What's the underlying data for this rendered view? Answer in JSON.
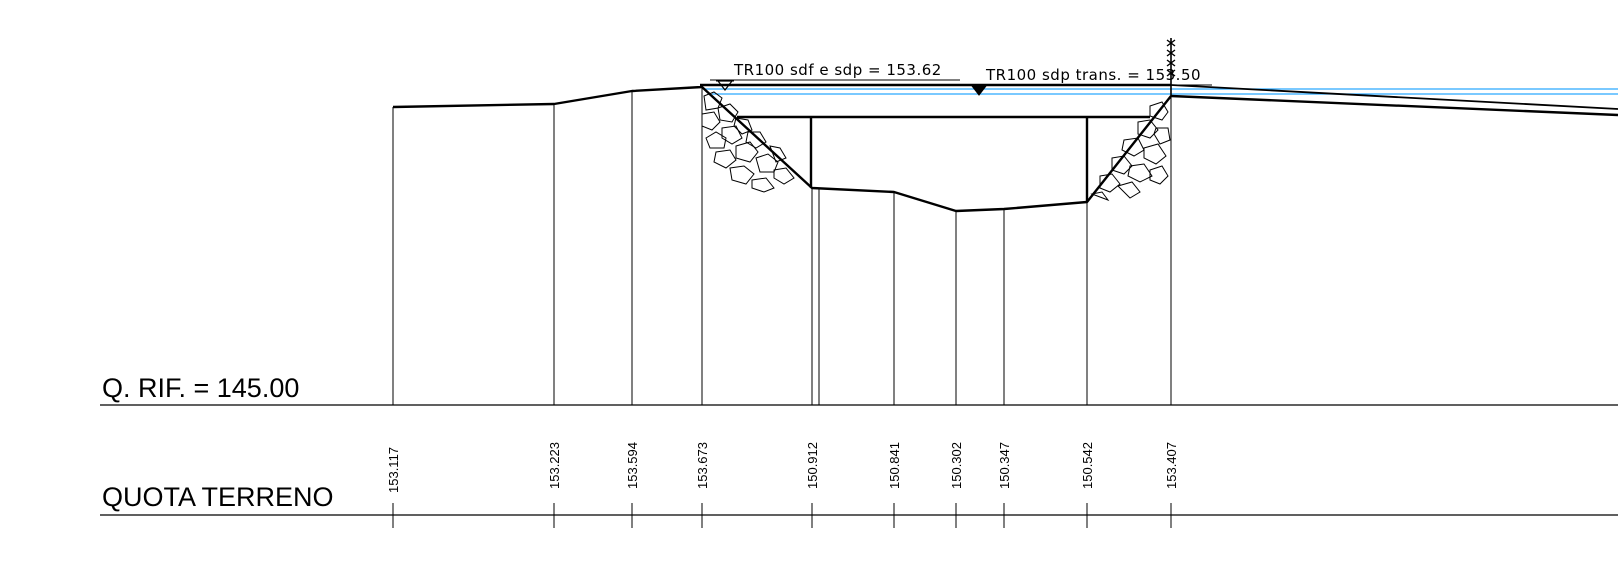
{
  "labels": {
    "reference_level": "Q. RIF. = 145.00",
    "ground_elevation_row": "QUOTA TERRENO"
  },
  "water_levels": [
    {
      "id": "tr100-sdf-sdp",
      "text": "TR100  sdf  e  sdp  =  153.62"
    },
    {
      "id": "tr100-sdp-trans",
      "text": "TR100  sdp  trans.  =  153.50"
    }
  ],
  "elevations": [
    "153.117",
    "153.223",
    "153.594",
    "153.673",
    "150.912",
    "150.841",
    "150.302",
    "150.347",
    "150.542",
    "153.407"
  ],
  "colors": {
    "water_line": "#2aa9ff",
    "drawing": "#000000"
  }
}
